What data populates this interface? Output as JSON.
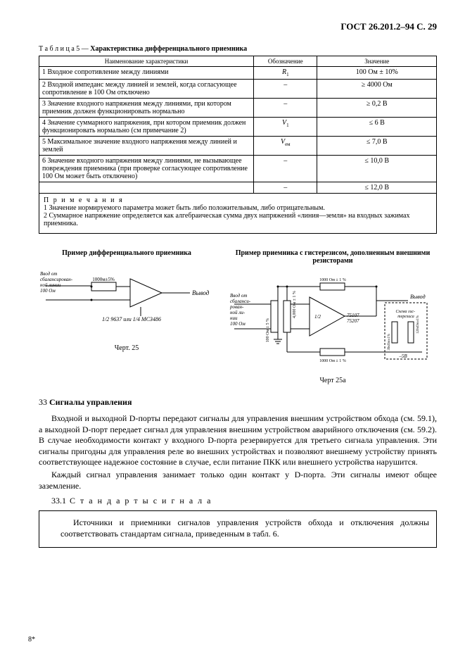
{
  "header": "ГОСТ 26.201.2–94 С. 29",
  "table": {
    "caption_prefix": "Т а б л и ц а  5 — ",
    "caption": "Характеристика дифференциального приемника",
    "head": [
      "Наименование характеристики",
      "Обозначение",
      "Значение"
    ],
    "rows": [
      {
        "name": "1 Входное сопротивление между линиями",
        "sym": "R",
        "sym_sub": "1",
        "val": "100 Ом ± 10%"
      },
      {
        "name": "2 Входной импеданс между линией и землей, когда согласующее сопротивление в 100 Ом отключено",
        "sym": "–",
        "val": "≥ 4000 Ом"
      },
      {
        "name": "3 Значение входного напряжения между линиями, при котором приемник должен функционировать нормально",
        "sym": "–",
        "val": "≥ 0,2 В"
      },
      {
        "name": "4 Значение суммарного напряжения, при котором приемник должен функционировать нормально (см примечание 2)",
        "sym": "V",
        "sym_sub": "1",
        "val": "≤ 6 В"
      },
      {
        "name": "5 Максимальное значение входного напряжения между линией и землей",
        "sym": "V",
        "sym_sub": "ем",
        "val": "≤ 7,0 В"
      },
      {
        "name": "6 Значение входного напряжения между линиями, не вызывающее повреждения приемника (при проверке согласующее сопротивление 100 Ом может быть отключено)",
        "sym": "–",
        "val": "≤ 10,0 В"
      },
      {
        "name": "",
        "sym": "–",
        "val": "≤ 12,0 В"
      }
    ],
    "notes_title": "П р и м е ч а н и я",
    "notes": [
      "1 Значение нормируемого параметра может быть либо положительным, либо отрицательным.",
      "2 Суммарное напряжение определяется как алгебраическая сумма двух напряжений «линия—земля» на входных зажимах приемника."
    ]
  },
  "diagrams": {
    "left_title": "Пример дифференциального приемника",
    "right_title": "Пример приемника с гистерезисом, дополненным внешними резисторами",
    "left_caption": "Черт. 25",
    "right_caption": "Черт  25а",
    "left_labels": {
      "input": "Ввод от сбалансирован- ной линии 100 Ом",
      "r1": "1000м±5%",
      "output": "Вывод",
      "chip": "1/2 9637 или 1/4 МС3486"
    },
    "right_labels": {
      "input": "Ввод от сбаланси- рован- ной ли- нии 100 Ом",
      "r_left1": "100 Ом ± 5 %",
      "r_left2": "4,000 Ом ± 1 %",
      "r_top": "1000 Ом ± 1 %",
      "r_bot": "1000 Ом ± 1 %",
      "chip": "1/2  75107 75207",
      "output": "Вывод",
      "hyst_box": "Схема гис- терезиса",
      "minus5": "–5В",
      "r_right1": "39кОм±1%",
      "r_right2": "120кОм±1%"
    }
  },
  "section": {
    "num": "33",
    "name": "Сигналы управления",
    "p1": "Входной и выходной D-порты передают сигналы для управления внешним устройством обхода (см. 59.1), а выходной D-порт передает сигнал для управления внешним устройством аварийного отключения (см. 59.2). В случае необходимости контакт у входного D-порта резервируется для третьего сигнала управления. Эти сигналы пригодны для управления реле во внешних устройствах и позволяют внешнему устройству принять соответствующее надежное состояние в случае, если питание ПКК или внешнего устройства нарушится.",
    "p2": "Каждый сигнал управления занимает только один контакт у D-порта. Эти сигналы имеют общее заземление.",
    "sub_num": "33.1",
    "sub_name": "С т а н д а р т ы   с и г н а л а",
    "boxed": "Источники и приемники сигналов управления устройств обхода и отключения должны соответствовать стандартам сигнала, приведенным в табл. 6."
  },
  "footer": "8*"
}
